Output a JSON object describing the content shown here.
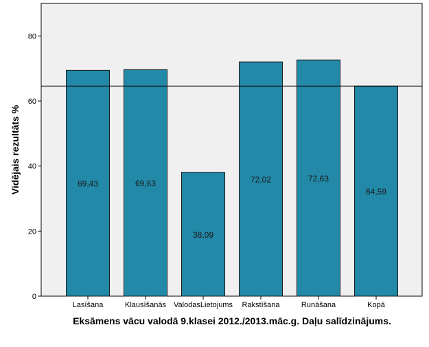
{
  "chart_data": {
    "type": "bar",
    "categories": [
      "Lasīšana",
      "Klausīšanās",
      "ValodasLietojums",
      "Rakstīšana",
      "Runāšana",
      "Kopā"
    ],
    "values": [
      69.43,
      69.63,
      38.09,
      72.02,
      72.63,
      64.59
    ],
    "value_labels": [
      "69,43",
      "69,63",
      "38,09",
      "72,02",
      "72,63",
      "64,59"
    ],
    "title": "",
    "xlabel": "Eksāmens vācu valodā 9.klasei 2012./2013.māc.g. Daļu salīdzinājums.",
    "ylabel": "Vidējais rezultāts %",
    "ylim": [
      0,
      90
    ],
    "yticks": [
      0,
      20,
      40,
      60,
      80
    ],
    "reference_line": 64.59,
    "grid": false,
    "legend": "none",
    "colors": {
      "bar_fill": "#2389A8",
      "bar_stroke": "#1a1a1a",
      "plot_background": "#F0F0F0",
      "reference_line": "#000000"
    }
  }
}
